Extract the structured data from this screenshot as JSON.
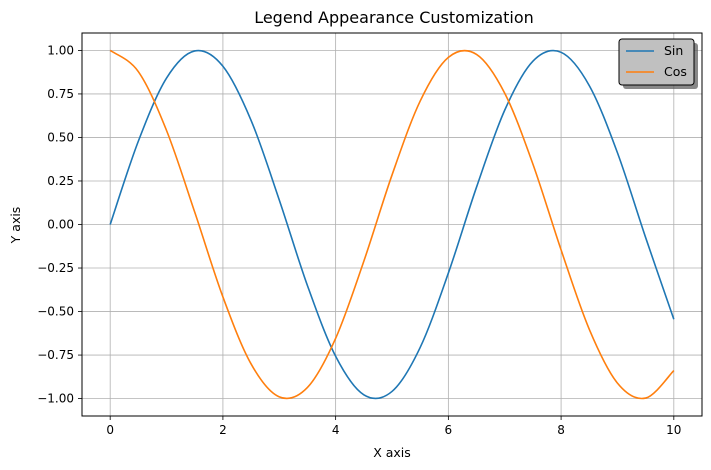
{
  "chart_data": {
    "type": "line",
    "title": "Legend Appearance Customization",
    "xlabel": "X axis",
    "ylabel": "Y axis",
    "xlim": [
      -0.5,
      10.5
    ],
    "ylim": [
      -1.1,
      1.1
    ],
    "xticks": [
      0,
      2,
      4,
      6,
      8,
      10
    ],
    "xtick_labels": [
      "0",
      "2",
      "4",
      "6",
      "8",
      "10"
    ],
    "yticks": [
      1.0,
      0.75,
      0.5,
      0.25,
      0.0,
      -0.25,
      -0.5,
      -0.75,
      -1.0
    ],
    "ytick_labels": [
      "1.00",
      "0.75",
      "0.50",
      "0.25",
      "0.00",
      "−0.25",
      "−0.50",
      "−0.75",
      "−1.00"
    ],
    "grid": true,
    "legend": {
      "placement": "top-right",
      "facecolor": "#c0c0c0",
      "shadow": true
    },
    "x": [
      0,
      0.5,
      1,
      1.5,
      2,
      2.5,
      3,
      3.5,
      4,
      4.5,
      5,
      5.5,
      6,
      6.5,
      7,
      7.5,
      8,
      8.5,
      9,
      9.5,
      10
    ],
    "series": [
      {
        "name": "Sin",
        "color": "#1f77b4",
        "values": [
          0.0,
          0.479,
          0.841,
          0.997,
          0.909,
          0.598,
          0.141,
          -0.351,
          -0.757,
          -0.978,
          -0.959,
          -0.706,
          -0.279,
          0.215,
          0.657,
          0.938,
          0.989,
          0.798,
          0.412,
          -0.075,
          -0.544
        ]
      },
      {
        "name": "Cos",
        "color": "#ff7f0e",
        "values": [
          1.0,
          0.878,
          0.54,
          0.071,
          -0.416,
          -0.801,
          -0.99,
          -0.936,
          -0.654,
          -0.211,
          0.284,
          0.709,
          0.96,
          0.977,
          0.754,
          0.347,
          -0.146,
          -0.602,
          -0.911,
          -0.997,
          -0.839
        ]
      }
    ]
  }
}
